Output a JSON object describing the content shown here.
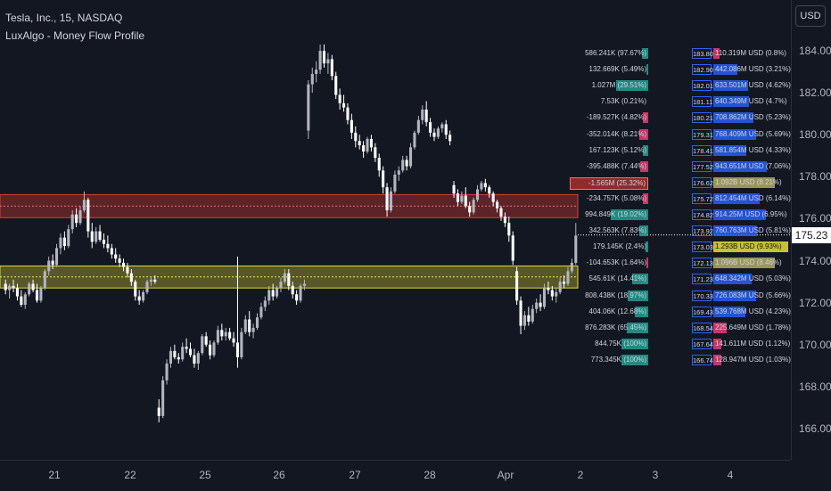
{
  "legend": {
    "title": "Tesla, Inc., 15, NASDAQ",
    "indicator": "LuxAlgo - Money Flow Profile"
  },
  "currency_button": "USD",
  "last_price": "175.23",
  "colors": {
    "background": "#131722",
    "up": "#b2b5be",
    "down": "#ffffff",
    "red_zone": "#e53935",
    "yellow_zone": "#f5eb3b",
    "teal": "#26a69a",
    "blue": "#2962ff",
    "pink": "#f23f7a",
    "olive": "#b9b56b"
  },
  "price_axis": {
    "ticks": [
      "184.00",
      "182.00",
      "180.00",
      "178.00",
      "176.00",
      "174.00",
      "172.00",
      "170.00",
      "168.00",
      "166.00"
    ]
  },
  "time_axis": {
    "ticks": [
      "21",
      "22",
      "25",
      "26",
      "27",
      "28",
      "Apr",
      "2",
      "3",
      "4"
    ]
  },
  "zones": {
    "red": {
      "low": 176.05,
      "high": 177.15
    },
    "yellow": {
      "low": 172.7,
      "high": 173.75
    }
  },
  "profile_rows": [
    {
      "left": "586.241K (97.67%)",
      "price": "183.80",
      "right": "110.319M USD (0.8%)",
      "lcolor": "teal",
      "lfill": 0.12,
      "rcolor": "pink",
      "rfill": 0.08
    },
    {
      "left": "132.669K (5.49%)",
      "price": "182.90",
      "right": "442.086M USD (3.21%)",
      "lcolor": "teal",
      "lfill": 0.03,
      "rcolor": "blue",
      "rfill": 0.32
    },
    {
      "left": "1.027M (29.51%)",
      "price": "182.01",
      "right": "633.501M USD (4.62%)",
      "lcolor": "teal",
      "lfill": 0.6,
      "rcolor": "blue",
      "rfill": 0.46
    },
    {
      "left": "7.53K (0.21%)",
      "price": "181.11",
      "right": "640.349M USD (4.7%)",
      "lcolor": "teal",
      "lfill": 0.0,
      "rcolor": "blue",
      "rfill": 0.47
    },
    {
      "left": "-189.527K (4.82%)",
      "price": "180.21",
      "right": "708.862M USD (5.23%)",
      "lcolor": "pink",
      "lfill": 0.1,
      "rcolor": "blue",
      "rfill": 0.53
    },
    {
      "left": "-352.014K (8.21%)",
      "price": "179.31",
      "right": "768.409M USD (5.69%)",
      "lcolor": "pink",
      "lfill": 0.17,
      "rcolor": "blue",
      "rfill": 0.57
    },
    {
      "left": "167.123K (5.12%)",
      "price": "178.41",
      "right": "581.854M USD (4.33%)",
      "lcolor": "teal",
      "lfill": 0.1,
      "rcolor": "blue",
      "rfill": 0.44
    },
    {
      "left": "-395.488K (7.44%)",
      "price": "177.52",
      "right": "943.651M USD (7.06%)",
      "lcolor": "pink",
      "lfill": 0.15,
      "rcolor": "blue",
      "rfill": 0.71
    },
    {
      "left": "-1.565M (25.32%)",
      "price": "176.62",
      "right": "1.092B USD (8.21%)",
      "lcolor": "red",
      "lfill": 1.0,
      "rcolor": "olive",
      "rfill": 0.83
    },
    {
      "left": "-234.757K (5.08%)",
      "price": "175.72",
      "right": "812.454M USD (6.14%)",
      "lcolor": "pink",
      "lfill": 0.1,
      "rcolor": "blue",
      "rfill": 0.61
    },
    {
      "left": "994.849K (19.02%)",
      "price": "174.82",
      "right": "914.25M USD (6.95%)",
      "lcolor": "teal",
      "lfill": 0.7,
      "rcolor": "blue",
      "rfill": 0.69
    },
    {
      "left": "342.563K (7.83%)",
      "price": "173.92",
      "right": "760.763M USD (5.81%)",
      "lcolor": "teal",
      "lfill": 0.16,
      "rcolor": "blue",
      "rfill": 0.58
    },
    {
      "left": "179.145K (2.4%)",
      "price": "173.03",
      "right": "1.293B USD (9.93%)",
      "lcolor": "teal",
      "lfill": 0.05,
      "rcolor": "yellow",
      "rfill": 1.0
    },
    {
      "left": "-104.653K (1.64%)",
      "price": "172.13",
      "right": "1.096B USD (8.46%)",
      "lcolor": "pink",
      "lfill": 0.03,
      "rcolor": "olive",
      "rfill": 0.85
    },
    {
      "left": "545.61K (14.41%)",
      "price": "171.23",
      "right": "648.342M USD (5.03%)",
      "lcolor": "teal",
      "lfill": 0.3,
      "rcolor": "blue",
      "rfill": 0.5
    },
    {
      "left": "808.438K (18.97%)",
      "price": "170.33",
      "right": "726.083M USD (5.66%)",
      "lcolor": "teal",
      "lfill": 0.38,
      "rcolor": "blue",
      "rfill": 0.57
    },
    {
      "left": "404.06K (12.68%)",
      "price": "169.43",
      "right": "539.768M USD (4.23%)",
      "lcolor": "teal",
      "lfill": 0.25,
      "rcolor": "blue",
      "rfill": 0.42
    },
    {
      "left": "876.283K (65.45%)",
      "price": "168.54",
      "right": "225.649M USD (1.78%)",
      "lcolor": "teal",
      "lfill": 0.4,
      "rcolor": "pink",
      "rfill": 0.18
    },
    {
      "left": "844.75K (100%)",
      "price": "167.64",
      "right": "141.611M USD (1.12%)",
      "lcolor": "teal",
      "lfill": 0.5,
      "rcolor": "pink",
      "rfill": 0.11
    },
    {
      "left": "773.345K (100%)",
      "price": "166.74",
      "right": "128.947M USD (1.03%)",
      "lcolor": "teal",
      "lfill": 0.5,
      "rcolor": "pink",
      "rfill": 0.1
    }
  ],
  "candles": [
    [
      172.9,
      173.1,
      172.4,
      172.6
    ],
    [
      172.6,
      172.9,
      172.2,
      172.8
    ],
    [
      172.8,
      173.1,
      172.5,
      172.7
    ],
    [
      172.7,
      172.9,
      172.1,
      172.3
    ],
    [
      172.3,
      172.6,
      171.8,
      171.9
    ],
    [
      171.9,
      172.5,
      171.7,
      172.4
    ],
    [
      172.4,
      173.0,
      172.3,
      172.9
    ],
    [
      172.9,
      173.1,
      172.5,
      172.6
    ],
    [
      172.6,
      172.9,
      172.0,
      172.1
    ],
    [
      172.1,
      172.8,
      172.0,
      172.7
    ],
    [
      172.7,
      173.6,
      172.6,
      173.5
    ],
    [
      173.5,
      174.2,
      173.3,
      174.0
    ],
    [
      174.0,
      174.3,
      173.6,
      173.8
    ],
    [
      173.8,
      174.8,
      173.7,
      174.6
    ],
    [
      174.6,
      175.3,
      174.3,
      175.1
    ],
    [
      175.1,
      175.4,
      174.5,
      174.7
    ],
    [
      174.7,
      175.7,
      174.6,
      175.5
    ],
    [
      175.5,
      176.4,
      175.3,
      176.2
    ],
    [
      176.2,
      176.5,
      175.6,
      175.8
    ],
    [
      175.8,
      176.6,
      175.7,
      176.4
    ],
    [
      176.4,
      177.3,
      176.3,
      176.9
    ],
    [
      176.9,
      177.0,
      175.1,
      175.4
    ],
    [
      175.4,
      175.8,
      174.6,
      174.9
    ],
    [
      174.9,
      175.6,
      174.8,
      175.4
    ],
    [
      175.4,
      175.7,
      174.9,
      175.0
    ],
    [
      175.0,
      175.3,
      174.6,
      174.8
    ],
    [
      174.8,
      175.2,
      174.4,
      174.6
    ],
    [
      174.6,
      174.8,
      174.1,
      174.3
    ],
    [
      174.3,
      174.6,
      173.9,
      174.1
    ],
    [
      174.1,
      174.3,
      173.7,
      173.9
    ],
    [
      173.9,
      174.1,
      173.5,
      173.7
    ],
    [
      173.7,
      173.9,
      173.2,
      173.4
    ],
    [
      173.4,
      173.6,
      172.8,
      173.0
    ],
    [
      173.0,
      173.1,
      172.1,
      172.3
    ],
    [
      172.3,
      172.6,
      171.9,
      172.1
    ],
    [
      172.1,
      172.6,
      172.0,
      172.5
    ],
    [
      172.5,
      173.1,
      172.4,
      173.0
    ],
    [
      173.0,
      173.2,
      172.8,
      173.1
    ],
    [
      173.1,
      173.3,
      172.9,
      173.0
    ],
    [
      167.0,
      167.4,
      166.3,
      166.6
    ],
    [
      166.6,
      168.5,
      166.5,
      168.3
    ],
    [
      168.3,
      169.3,
      168.1,
      169.1
    ],
    [
      169.1,
      169.9,
      168.9,
      169.7
    ],
    [
      169.7,
      170.0,
      169.3,
      169.4
    ],
    [
      169.4,
      169.6,
      169.1,
      169.3
    ],
    [
      169.3,
      170.1,
      169.2,
      169.9
    ],
    [
      169.9,
      170.3,
      169.6,
      169.8
    ],
    [
      169.8,
      170.1,
      169.4,
      169.5
    ],
    [
      169.5,
      169.8,
      168.9,
      169.1
    ],
    [
      169.1,
      169.7,
      168.8,
      169.6
    ],
    [
      169.6,
      170.5,
      169.5,
      170.4
    ],
    [
      170.4,
      170.6,
      169.9,
      170.0
    ],
    [
      170.0,
      170.2,
      169.3,
      169.5
    ],
    [
      169.5,
      170.2,
      169.4,
      170.1
    ],
    [
      170.1,
      170.9,
      170.0,
      170.7
    ],
    [
      170.7,
      171.0,
      170.2,
      170.4
    ],
    [
      170.4,
      170.8,
      170.2,
      170.6
    ],
    [
      170.6,
      170.8,
      170.2,
      170.3
    ],
    [
      170.3,
      170.6,
      169.9,
      170.1
    ],
    [
      170.1,
      174.2,
      168.9,
      169.4
    ],
    [
      169.4,
      170.8,
      169.3,
      170.6
    ],
    [
      170.6,
      171.4,
      170.5,
      171.2
    ],
    [
      171.2,
      171.6,
      170.4,
      170.6
    ],
    [
      170.6,
      171.0,
      170.3,
      170.8
    ],
    [
      170.8,
      171.5,
      170.7,
      171.3
    ],
    [
      171.3,
      172.0,
      171.2,
      171.8
    ],
    [
      171.8,
      172.3,
      171.6,
      172.1
    ],
    [
      172.1,
      172.8,
      171.9,
      172.6
    ],
    [
      172.6,
      172.9,
      172.1,
      172.3
    ],
    [
      172.3,
      172.8,
      172.2,
      172.7
    ],
    [
      172.7,
      173.2,
      172.5,
      173.0
    ],
    [
      173.0,
      173.6,
      172.9,
      173.4
    ],
    [
      173.4,
      173.6,
      172.6,
      172.8
    ],
    [
      172.8,
      173.0,
      172.2,
      172.4
    ],
    [
      172.4,
      172.6,
      171.9,
      172.1
    ],
    [
      172.1,
      172.9,
      172.0,
      172.8
    ],
    [
      172.8,
      173.1,
      172.6,
      172.9
    ],
    [
      180.2,
      182.6,
      179.8,
      182.4
    ],
    [
      182.4,
      183.2,
      182.0,
      182.9
    ],
    [
      182.9,
      183.5,
      182.5,
      183.1
    ],
    [
      183.1,
      184.3,
      182.9,
      184.0
    ],
    [
      184.0,
      184.3,
      183.2,
      183.4
    ],
    [
      183.4,
      183.9,
      182.9,
      183.6
    ],
    [
      183.6,
      183.8,
      182.6,
      182.8
    ],
    [
      182.8,
      183.0,
      181.7,
      181.9
    ],
    [
      181.9,
      182.2,
      181.2,
      181.5
    ],
    [
      181.5,
      181.9,
      181.1,
      181.3
    ],
    [
      181.3,
      181.5,
      180.5,
      180.7
    ],
    [
      180.7,
      181.0,
      179.8,
      180.1
    ],
    [
      180.1,
      180.4,
      179.4,
      179.7
    ],
    [
      179.7,
      180.0,
      179.3,
      179.5
    ],
    [
      179.5,
      179.7,
      178.9,
      179.2
    ],
    [
      179.2,
      179.9,
      179.1,
      179.8
    ],
    [
      179.8,
      180.0,
      179.2,
      179.4
    ],
    [
      179.4,
      179.6,
      178.7,
      178.9
    ],
    [
      178.9,
      179.1,
      178.0,
      178.3
    ],
    [
      178.3,
      178.5,
      177.2,
      177.5
    ],
    [
      177.5,
      177.7,
      176.1,
      176.4
    ],
    [
      176.4,
      177.5,
      176.3,
      177.3
    ],
    [
      177.3,
      178.3,
      177.2,
      178.1
    ],
    [
      178.1,
      178.5,
      177.8,
      178.3
    ],
    [
      178.3,
      179.0,
      178.2,
      178.8
    ],
    [
      178.8,
      179.0,
      178.3,
      178.5
    ],
    [
      178.5,
      179.6,
      178.4,
      179.4
    ],
    [
      179.4,
      180.2,
      179.3,
      180.1
    ],
    [
      180.1,
      180.9,
      180.0,
      180.7
    ],
    [
      180.7,
      181.4,
      180.5,
      181.2
    ],
    [
      181.2,
      181.6,
      180.4,
      180.6
    ],
    [
      180.6,
      180.8,
      179.9,
      180.1
    ],
    [
      180.1,
      180.3,
      179.7,
      179.9
    ],
    [
      179.9,
      180.4,
      179.8,
      180.3
    ],
    [
      180.3,
      180.6,
      180.1,
      180.5
    ],
    [
      180.5,
      180.7,
      179.8,
      180.0
    ],
    [
      180.0,
      180.2,
      179.5,
      179.7
    ],
    [
      177.6,
      177.8,
      177.0,
      177.2
    ],
    [
      177.2,
      177.4,
      176.6,
      176.8
    ],
    [
      176.8,
      177.3,
      176.7,
      177.1
    ],
    [
      177.1,
      177.5,
      176.5,
      176.6
    ],
    [
      176.6,
      176.8,
      176.1,
      176.3
    ],
    [
      176.3,
      177.0,
      176.2,
      176.9
    ],
    [
      176.9,
      177.6,
      176.8,
      177.4
    ],
    [
      177.4,
      177.8,
      177.3,
      177.7
    ],
    [
      177.7,
      177.9,
      177.3,
      177.5
    ],
    [
      177.5,
      177.6,
      177.0,
      177.2
    ],
    [
      177.2,
      177.3,
      176.6,
      176.8
    ],
    [
      176.8,
      176.9,
      176.3,
      176.5
    ],
    [
      176.5,
      176.6,
      175.9,
      176.1
    ],
    [
      176.1,
      176.3,
      175.6,
      175.8
    ],
    [
      175.8,
      176.1,
      174.9,
      175.2
    ],
    [
      175.2,
      175.4,
      173.8,
      174.0
    ],
    [
      173.5,
      173.7,
      171.9,
      172.1
    ],
    [
      172.1,
      172.3,
      170.5,
      170.9
    ],
    [
      170.9,
      171.6,
      170.7,
      171.4
    ],
    [
      171.4,
      171.8,
      170.9,
      171.1
    ],
    [
      171.1,
      171.9,
      171.0,
      171.7
    ],
    [
      171.7,
      172.2,
      171.5,
      172.0
    ],
    [
      172.0,
      172.4,
      171.6,
      171.8
    ],
    [
      171.8,
      172.9,
      171.7,
      172.7
    ],
    [
      172.7,
      173.0,
      172.4,
      172.6
    ],
    [
      172.6,
      172.8,
      172.1,
      172.3
    ],
    [
      172.3,
      172.7,
      172.0,
      172.5
    ],
    [
      172.5,
      173.2,
      172.4,
      173.0
    ],
    [
      173.0,
      173.3,
      172.7,
      172.9
    ],
    [
      172.9,
      173.7,
      172.8,
      173.5
    ],
    [
      173.5,
      174.1,
      173.4,
      173.9
    ],
    [
      173.9,
      175.8,
      173.8,
      175.2
    ]
  ]
}
